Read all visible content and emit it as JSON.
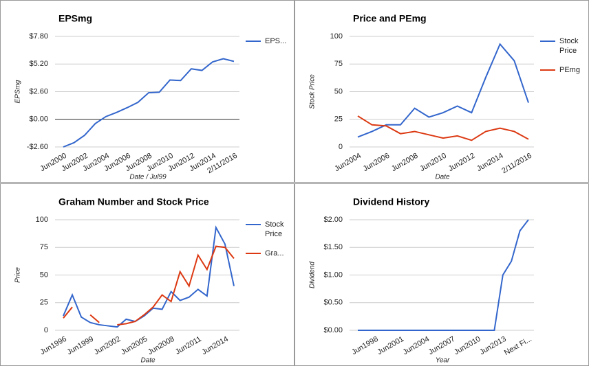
{
  "chart_data": [
    {
      "type": "line",
      "title": "EPSmg",
      "y_axis_label": "EPSmg",
      "x_axis_label": "Date / Jul99",
      "categories": [
        "Jun2000",
        null,
        "Jun2002",
        null,
        "Jun2004",
        null,
        "Jun2006",
        null,
        "Jun2008",
        null,
        "Jun2010",
        null,
        "Jun2012",
        null,
        "Jun2014",
        null,
        "2/11/2016"
      ],
      "series": [
        {
          "name": "EPS...",
          "color": "#3366cc",
          "values": [
            -2.6,
            -2.2,
            -1.5,
            -0.4,
            0.26,
            0.65,
            1.1,
            1.6,
            2.5,
            2.55,
            3.7,
            3.65,
            4.75,
            4.6,
            5.4,
            5.7,
            5.45
          ]
        }
      ],
      "ylim": [
        -2.6,
        7.8
      ],
      "yticks": [
        {
          "value": -2.6,
          "label": "-$2.60"
        },
        {
          "value": 0,
          "label": "$0.00"
        },
        {
          "value": 2.6,
          "label": "$2.60"
        },
        {
          "value": 5.2,
          "label": "$5.20"
        },
        {
          "value": 7.8,
          "label": "$7.80"
        }
      ],
      "grid": true,
      "legend": "right"
    },
    {
      "type": "line",
      "title": "Price and PEmg",
      "y_axis_label": "Stock Price",
      "x_axis_label": "Date",
      "categories": [
        "Jun2004",
        null,
        "Jun2006",
        null,
        "Jun2008",
        null,
        "Jun2010",
        null,
        "Jun2012",
        null,
        "Jun2014",
        null,
        "2/11/2016"
      ],
      "series": [
        {
          "name": "Stock Price",
          "color": "#3366cc",
          "values": [
            9,
            14,
            20,
            20,
            35,
            27,
            31,
            37,
            31,
            63,
            93,
            78,
            40
          ]
        },
        {
          "name": "PEmg",
          "color": "#dc3912",
          "values": [
            28,
            20,
            19,
            12,
            14,
            11,
            8,
            10,
            6,
            14,
            17,
            14,
            7
          ]
        }
      ],
      "ylim": [
        0,
        100
      ],
      "yticks": [
        0,
        25,
        50,
        75,
        100
      ],
      "grid": true,
      "legend": "right"
    },
    {
      "type": "line",
      "title": "Graham Number and Stock Price",
      "y_axis_label": "Price",
      "x_axis_label": "Date",
      "categories": [
        "Jun1996",
        null,
        null,
        "Jun1999",
        null,
        null,
        "Jun2002",
        null,
        null,
        "Jun2005",
        null,
        null,
        "Jun2008",
        null,
        null,
        "Jun2011",
        null,
        null,
        "Jun2014",
        null
      ],
      "series": [
        {
          "name": "Stock Price",
          "color": "#3366cc",
          "values": [
            13,
            32,
            12,
            7,
            5,
            4,
            3,
            10,
            8,
            13,
            20,
            19,
            35,
            27,
            30,
            37,
            31,
            93,
            78,
            40
          ]
        },
        {
          "name": "Gra...",
          "color": "#dc3912",
          "values": [
            11,
            21,
            null,
            14,
            7,
            null,
            5,
            6,
            8,
            14,
            21,
            32,
            26,
            53,
            40,
            68,
            55,
            76,
            75,
            65
          ]
        }
      ],
      "ylim": [
        0,
        100
      ],
      "yticks": [
        0,
        25,
        50,
        75,
        100
      ],
      "grid": true,
      "legend": "right"
    },
    {
      "type": "line",
      "title": "Dividend History",
      "y_axis_label": "Dividend",
      "x_axis_label": "Year",
      "categories": [
        null,
        null,
        "Jun1998",
        null,
        null,
        "Jun2001",
        null,
        null,
        "Jun2004",
        null,
        null,
        "Jun2007",
        null,
        null,
        "Jun2010",
        null,
        null,
        "Jun2013",
        null,
        null,
        "Next Fi..."
      ],
      "series": [
        {
          "color": "#3366cc",
          "values": [
            0,
            0,
            0,
            0,
            0,
            0,
            0,
            0,
            0,
            0,
            0,
            0,
            0,
            0,
            0,
            0,
            0,
            1.0,
            1.25,
            1.8,
            2.0
          ]
        }
      ],
      "ylim": [
        0,
        2
      ],
      "yticks": [
        {
          "value": 0,
          "label": "$0.00"
        },
        {
          "value": 0.5,
          "label": "$0.50"
        },
        {
          "value": 1,
          "label": "$1.00"
        },
        {
          "value": 1.5,
          "label": "$1.50"
        },
        {
          "value": 2,
          "label": "$2.00"
        }
      ],
      "grid": true
    }
  ]
}
